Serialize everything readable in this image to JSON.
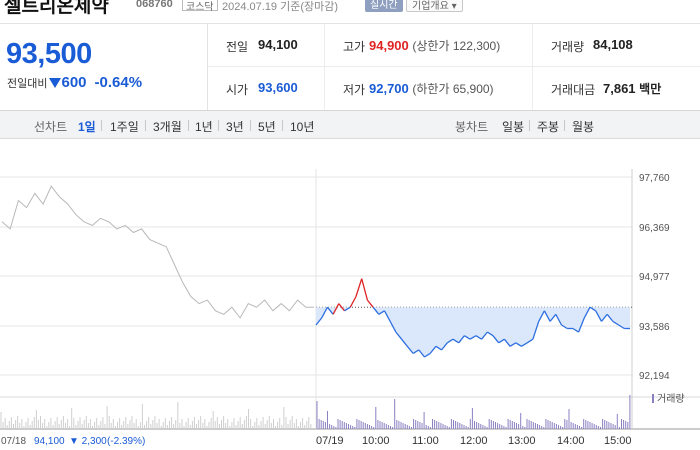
{
  "header": {
    "company_name": "셀트리온제약",
    "code": "068760",
    "market": "코스닥",
    "as_of": "2024.07.19 기준(장마감)",
    "realtime_button": "실시간",
    "company_info_button": "기업개요 ▾"
  },
  "quote": {
    "price": "93,500",
    "change_label": "전일대비",
    "change": "600",
    "change_pct": "-0.64%",
    "prev_close_label": "전일",
    "prev_close": "94,100",
    "open_label": "시가",
    "open": "93,600",
    "high_label": "고가",
    "high": "94,900",
    "high_sub": "(상한가 122,300)",
    "low_label": "저가",
    "low": "92,700",
    "low_sub": "(하한가 65,900)",
    "volume_label": "거래량",
    "volume": "84,108",
    "amount_label": "거래대금",
    "amount": "7,861",
    "amount_unit": "백만"
  },
  "toolbar": {
    "line_chart_label": "선차트",
    "periods": [
      "1일",
      "1주일",
      "3개월",
      "1년",
      "3년",
      "5년",
      "10년"
    ],
    "active_period": "1일",
    "candle_label": "봉차트",
    "candles": [
      "일봉",
      "주봉",
      "월봉"
    ]
  },
  "chart_data": {
    "type": "line",
    "y_ticks": [
      "97,760",
      "96,369",
      "94,977",
      "93,586",
      "92,194"
    ],
    "ylim": [
      92194,
      97760
    ],
    "reference_line": 94100,
    "x_ticks": [
      "07/19",
      "10:00",
      "11:00",
      "12:00",
      "13:00",
      "14:00",
      "15:00"
    ],
    "volume_legend": "거래량",
    "previous_day_footer": {
      "date": "07/18",
      "close": "94,100",
      "change": "▼ 2,300",
      "change_pct": "(-2.39%)"
    },
    "previous_day_series": [
      96500,
      96300,
      97100,
      96900,
      97300,
      97000,
      97500,
      97200,
      97000,
      96700,
      96500,
      96400,
      96600,
      96500,
      96300,
      96400,
      96200,
      96300,
      96000,
      95900,
      95800,
      95300,
      94800,
      94400,
      94200,
      94300,
      94000,
      93900,
      94100,
      93800,
      94200,
      94100,
      94300,
      94000,
      94200,
      94000,
      94300,
      94100,
      94100
    ],
    "current_day_series": [
      93600,
      93800,
      94100,
      93900,
      94200,
      94000,
      94100,
      94400,
      94900,
      94300,
      94100,
      93900,
      94000,
      93700,
      93400,
      93200,
      93000,
      92800,
      92900,
      92700,
      92800,
      93000,
      92900,
      93100,
      93200,
      93100,
      93300,
      93200,
      93300,
      93200,
      93400,
      93300,
      93100,
      93200,
      93000,
      93100,
      93000,
      93100,
      93200,
      93700,
      94000,
      93700,
      93900,
      93600,
      93500,
      93500,
      93400,
      93800,
      94100,
      94000,
      93700,
      93900,
      93700,
      93600,
      93500,
      93500
    ]
  },
  "colors": {
    "up": "#e02424",
    "down": "#1a5bd6",
    "line_blue": "#2d6fe0",
    "fill_below": "#dbe7fb",
    "prev_line": "#b8b8b8",
    "volume": "#8c7fc2"
  }
}
